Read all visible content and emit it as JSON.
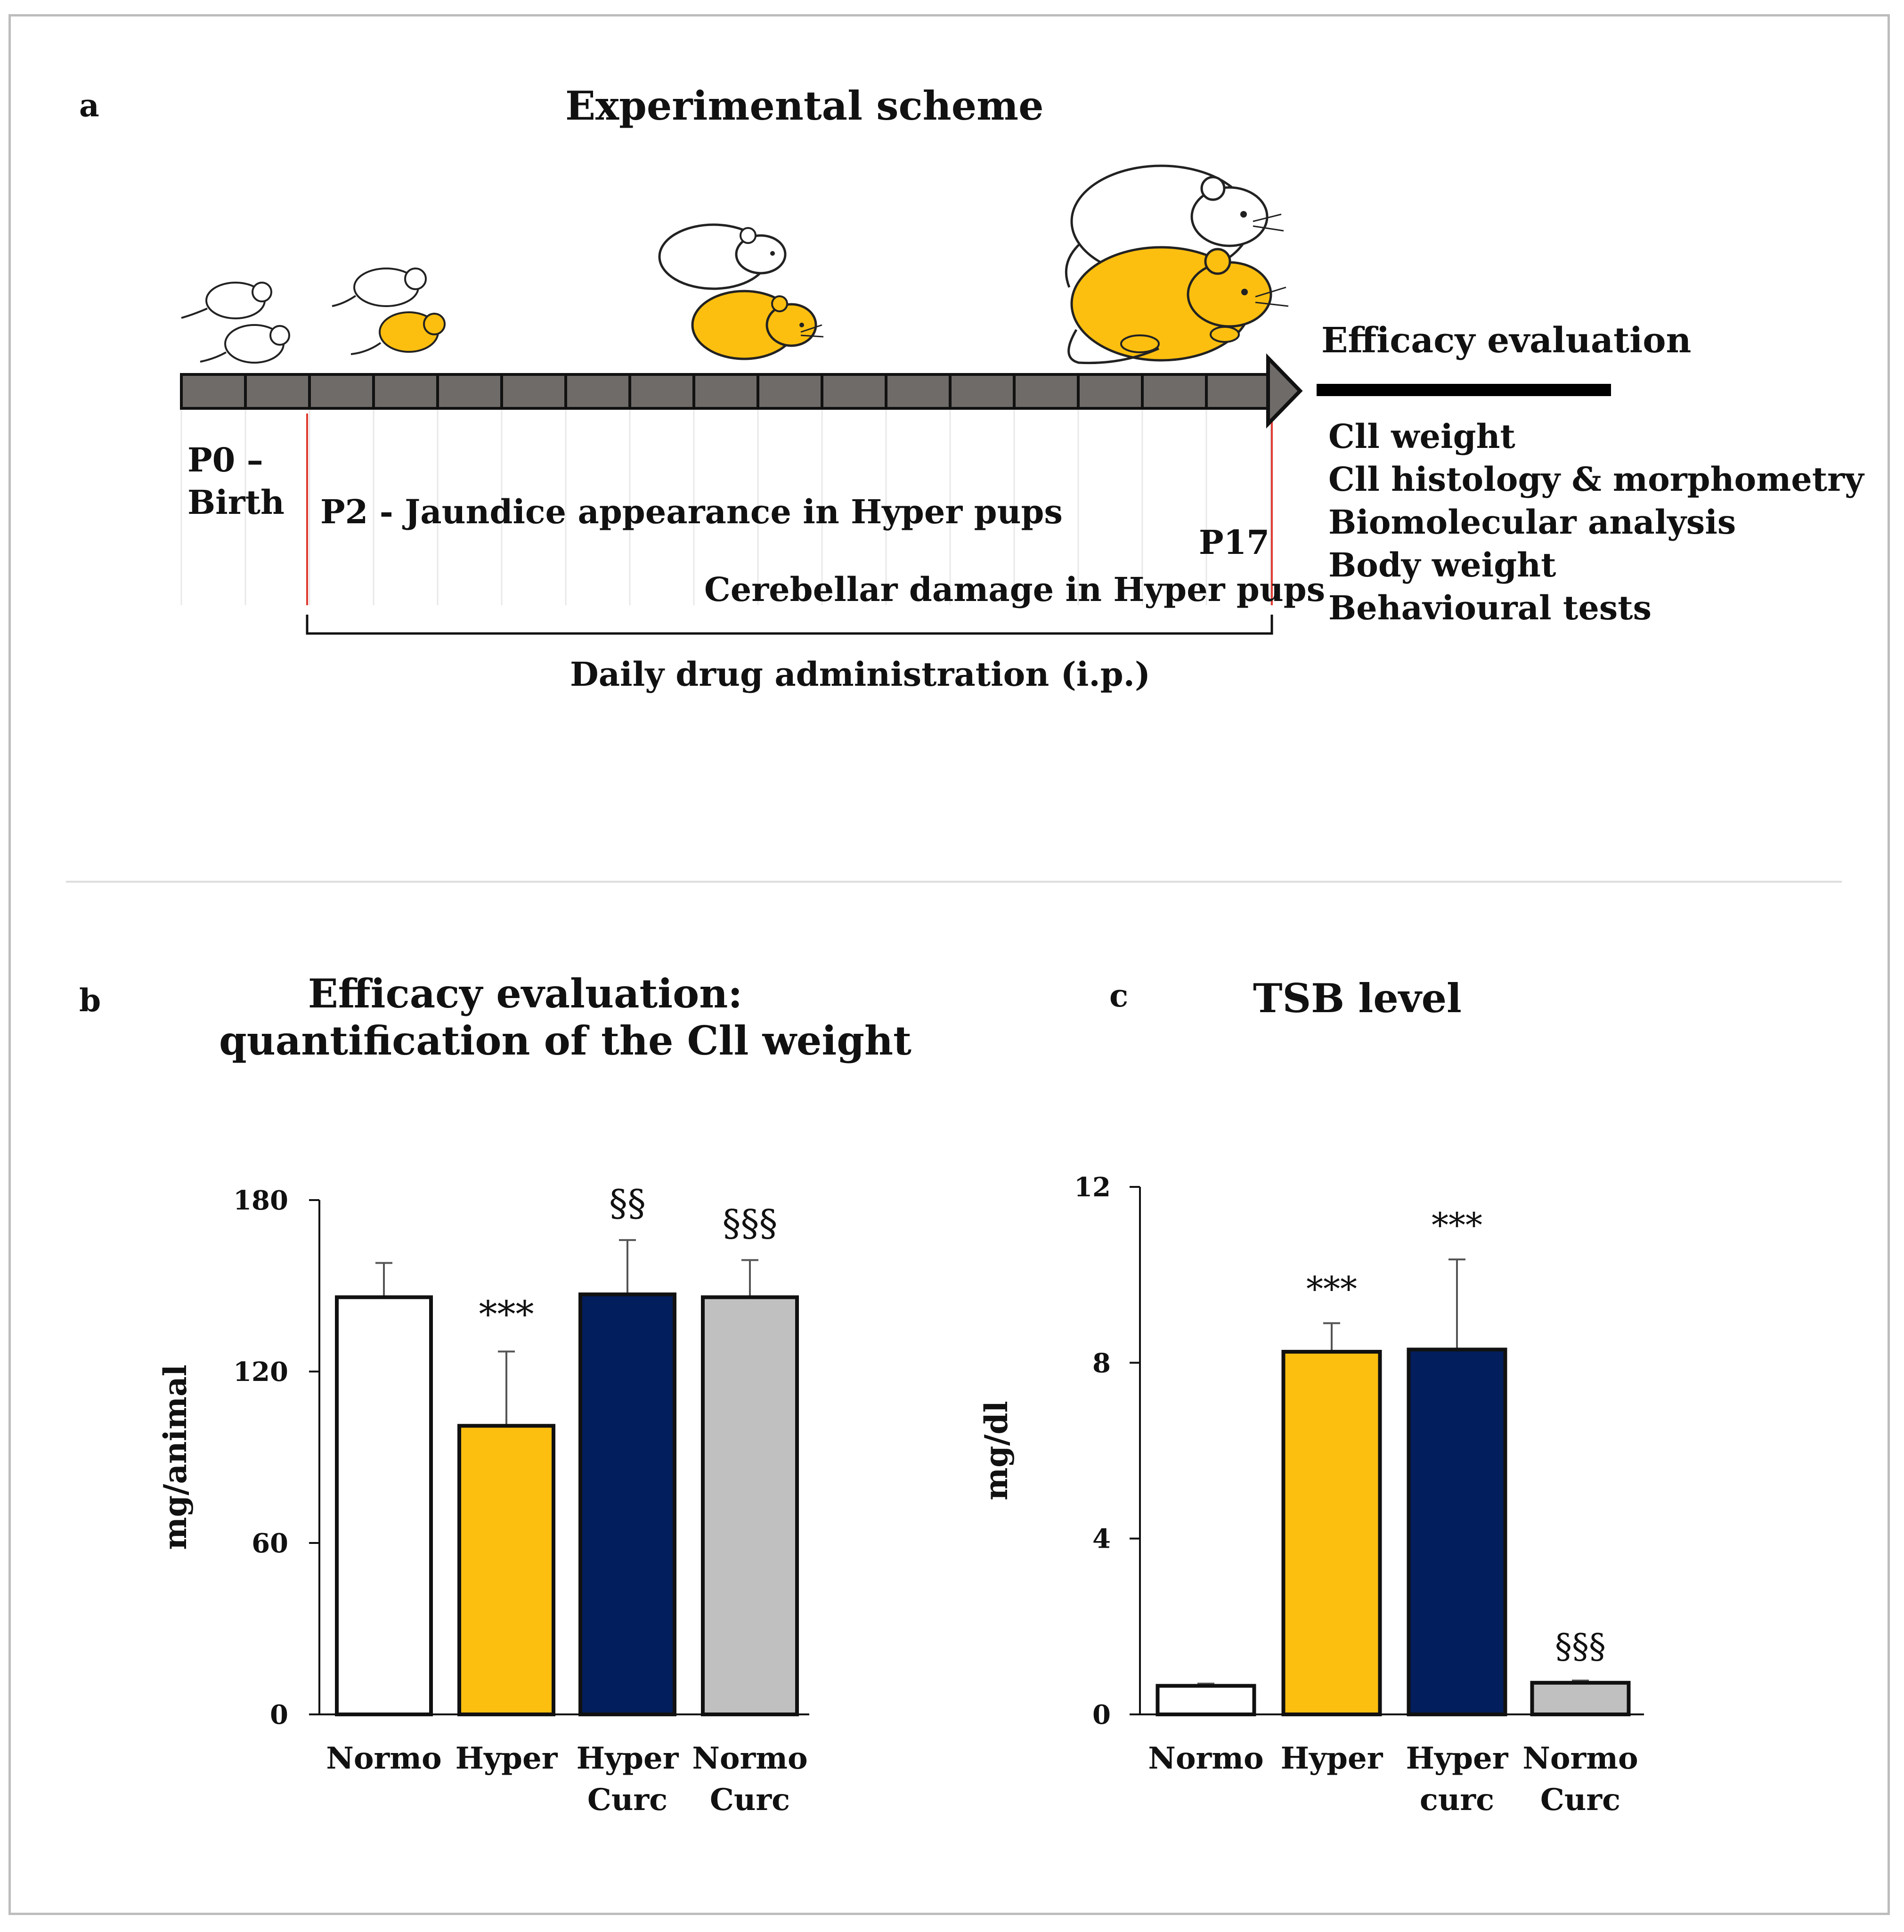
{
  "panel_a": {
    "label": "a",
    "title": "Experimental scheme",
    "p0_line1": "P0 –",
    "p0_line2": "Birth",
    "p2_text": "P2 - Jaundice appearance in Hyper pups",
    "p17_text": "P17",
    "damage_text": "Cerebellar damage in Hyper pups",
    "drug_text": "Daily drug administration (i.p.)",
    "efficacy_title": "Efficacy evaluation",
    "efficacy_items": [
      "Cll weight",
      "Cll histology & morphometry",
      "Biomolecular analysis",
      "Body weight",
      "Behavioural tests"
    ],
    "colors": {
      "normo": "#ffffff",
      "hyper": "#fdbf0f",
      "bar": "#6f6b69",
      "marker": "#e03a2f"
    }
  },
  "panel_b": {
    "label": "b",
    "title_line1": "Efficacy evaluation:",
    "title_line2": "quantification  of the Cll  weight"
  },
  "panel_c": {
    "label": "c",
    "title": "TSB level"
  },
  "chart_data": [
    {
      "type": "bar",
      "title": "Efficacy evaluation: quantification of the Cll weight",
      "xlabel": "",
      "ylabel": "mg/animal",
      "ylim": [
        0,
        180
      ],
      "yticks": [
        "0",
        "60",
        "120",
        "180"
      ],
      "categories": [
        [
          "Normo"
        ],
        [
          "Hyper"
        ],
        [
          "Hyper",
          "Curc"
        ],
        [
          "Normo",
          "Curc"
        ]
      ],
      "values": [
        146,
        101,
        147,
        146
      ],
      "errors": [
        12,
        26,
        19,
        13
      ],
      "annotations": [
        "",
        "***",
        "§§",
        "§§§"
      ],
      "colors": [
        "#ffffff",
        "#fdbf0f",
        "#031e5c",
        "#c0c0c0"
      ]
    },
    {
      "type": "bar",
      "title": "TSB level",
      "xlabel": "",
      "ylabel": "mg/dl",
      "ylim": [
        0,
        12
      ],
      "yticks": [
        "0",
        "4",
        "8",
        "12"
      ],
      "categories": [
        [
          "Normo"
        ],
        [
          "Hyper"
        ],
        [
          "Hyper",
          "curc"
        ],
        [
          "Normo",
          "Curc"
        ]
      ],
      "values": [
        0.65,
        8.25,
        8.3,
        0.72
      ],
      "errors": [
        0.05,
        0.65,
        2.05,
        0.05
      ],
      "annotations": [
        "",
        "***",
        "***",
        "§§§"
      ],
      "colors": [
        "#ffffff",
        "#fdbf0f",
        "#031e5c",
        "#c0c0c0"
      ]
    }
  ]
}
